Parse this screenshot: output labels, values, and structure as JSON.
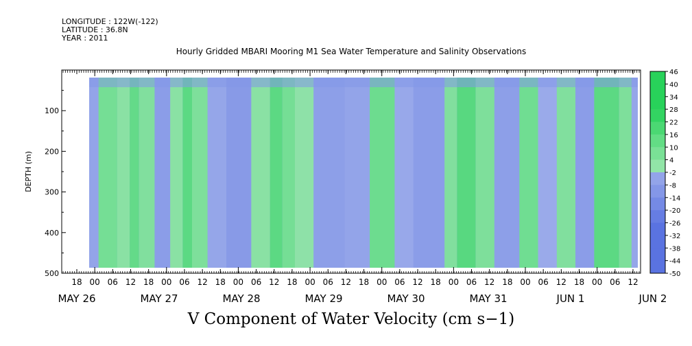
{
  "header": {
    "longitude": "LONGITUDE : 122W(-122)",
    "latitude": "LATITUDE : 36.8N",
    "year": "YEAR : 2011"
  },
  "chart_data": {
    "type": "heatmap",
    "title": "Hourly Gridded MBARI Mooring M1 Sea Water Temperature and Salinity Observations",
    "xlabel": "V Component of Water Velocity (cm s−1)",
    "ylabel": "DEPTH (m)",
    "ylim": [
      500,
      0
    ],
    "y_ticks": [
      100,
      200,
      300,
      400,
      500
    ],
    "date_labels": [
      "MAY 26",
      "MAY 27",
      "MAY 28",
      "MAY 29",
      "MAY 30",
      "MAY 31",
      "JUN  1",
      "JUN  2"
    ],
    "hour_ticks": [
      "18",
      "00",
      "06",
      "12",
      "18",
      "00",
      "06",
      "12",
      "18",
      "00",
      "06",
      "12",
      "18",
      "00",
      "06",
      "12",
      "18",
      "00",
      "06",
      "12",
      "18",
      "00",
      "06",
      "12",
      "18",
      "00",
      "06",
      "12",
      "18",
      "00",
      "06",
      "12"
    ],
    "colorbar": {
      "labels": [
        "46",
        "40",
        "34",
        "28",
        "22",
        "16",
        "10",
        "4",
        "-2",
        "-8",
        "-14",
        "-20",
        "-26",
        "-32",
        "-38",
        "-44",
        "-50"
      ],
      "min": -50,
      "max": 46
    },
    "bands": [
      {
        "t0": 0.0,
        "t1": 3.0,
        "value": -5
      },
      {
        "t0": 3.0,
        "t1": 9.0,
        "value": 8
      },
      {
        "t0": 9.0,
        "t1": 13.0,
        "value": 3
      },
      {
        "t0": 13.0,
        "t1": 16.0,
        "value": 12
      },
      {
        "t0": 16.0,
        "t1": 21.0,
        "value": 5
      },
      {
        "t0": 21.0,
        "t1": 26.0,
        "value": -8
      },
      {
        "t0": 26.0,
        "t1": 30.0,
        "value": 3
      },
      {
        "t0": 30.0,
        "t1": 33.0,
        "value": 14
      },
      {
        "t0": 33.0,
        "t1": 38.0,
        "value": 6
      },
      {
        "t0": 38.0,
        "t1": 44.0,
        "value": -4
      },
      {
        "t0": 44.0,
        "t1": 52.0,
        "value": -9
      },
      {
        "t0": 52.0,
        "t1": 58.0,
        "value": 3
      },
      {
        "t0": 58.0,
        "t1": 62.0,
        "value": 14
      },
      {
        "t0": 62.0,
        "t1": 66.0,
        "value": 8
      },
      {
        "t0": 66.0,
        "t1": 72.0,
        "value": 2
      },
      {
        "t0": 72.0,
        "t1": 82.0,
        "value": -7
      },
      {
        "t0": 82.0,
        "t1": 90.0,
        "value": -5
      },
      {
        "t0": 90.0,
        "t1": 98.0,
        "value": 10
      },
      {
        "t0": 98.0,
        "t1": 104.0,
        "value": -3
      },
      {
        "t0": 104.0,
        "t1": 114.0,
        "value": -8
      },
      {
        "t0": 114.0,
        "t1": 118.0,
        "value": 5
      },
      {
        "t0": 118.0,
        "t1": 124.0,
        "value": 15
      },
      {
        "t0": 124.0,
        "t1": 130.0,
        "value": 6
      },
      {
        "t0": 130.0,
        "t1": 138.0,
        "value": -7
      },
      {
        "t0": 138.0,
        "t1": 144.0,
        "value": 9
      },
      {
        "t0": 144.0,
        "t1": 150.0,
        "value": -2
      },
      {
        "t0": 150.0,
        "t1": 156.0,
        "value": 5
      },
      {
        "t0": 156.0,
        "t1": 162.0,
        "value": -8
      },
      {
        "t0": 162.0,
        "t1": 170.0,
        "value": 14
      },
      {
        "t0": 170.0,
        "t1": 174.0,
        "value": 6
      },
      {
        "t0": 174.0,
        "t1": 176.0,
        "value": -4
      }
    ]
  }
}
